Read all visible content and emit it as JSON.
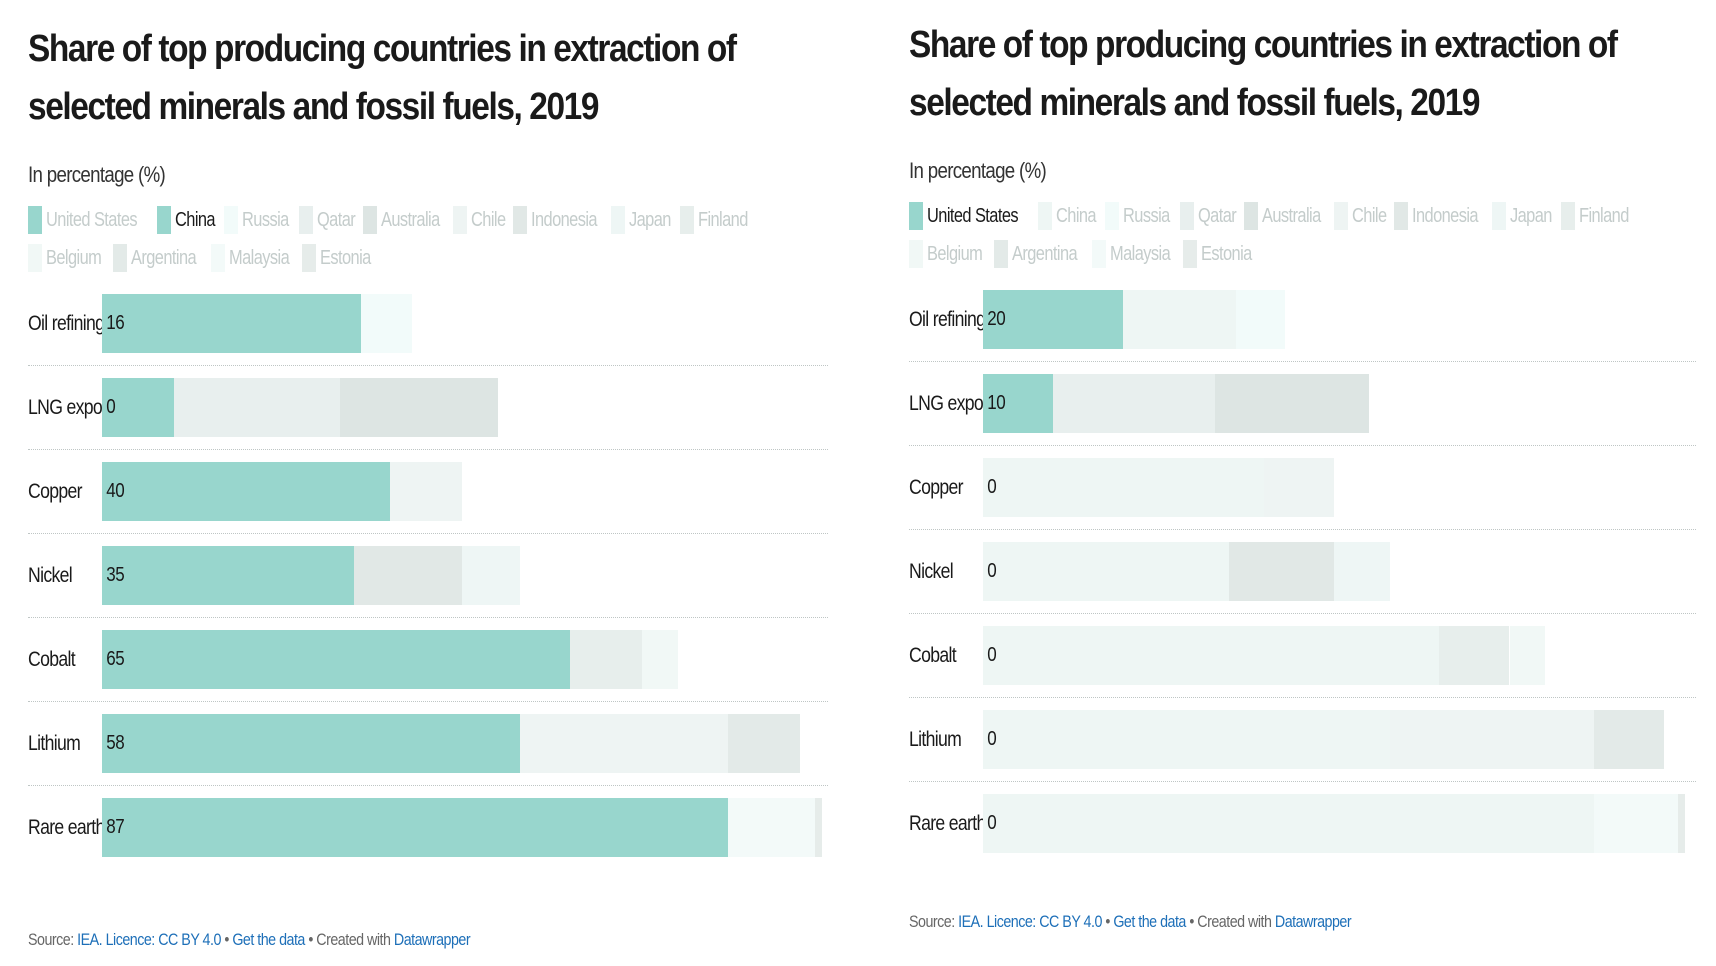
{
  "colors": {
    "highlight": "#98d6cd",
    "United States": "#98d6cd",
    "China": "#eef6f4",
    "Russia": "#f2fbfa",
    "Qatar": "#e8efee",
    "Australia": "#dde5e3",
    "Chile": "#eef4f3",
    "Indonesia": "#e1e8e6",
    "Japan": "#eef6f5",
    "Finland": "#e7eeec",
    "Belgium": "#f1f8f6",
    "Argentina": "#e3eae8",
    "Malaysia": "#f3faf9",
    "Estonia": "#e6ecea"
  },
  "legend_countries": [
    "United States",
    "China",
    "Russia",
    "Qatar",
    "Australia",
    "Chile",
    "Indonesia",
    "Japan",
    "Finland",
    "Belgium",
    "Argentina",
    "Malaysia",
    "Estonia"
  ],
  "footer": {
    "source_prefix": "Source:",
    "source_link": "IEA.",
    "licence_link": "Licence: CC BY 4.0",
    "sep1": " • ",
    "data_link": "Get the data",
    "sep2": " • Created with ",
    "tool_link": "Datawrapper"
  },
  "chart_data": [
    {
      "type": "bar",
      "stacked": true,
      "orientation": "horizontal",
      "title": "Share of top producing countries in extraction of selected minerals and fossil fuels, 2019",
      "subtitle": "In percentage (%)",
      "highlighted_series": "China",
      "xlim": [
        0,
        100
      ],
      "categories": [
        "Oil refining",
        "LNG export",
        "Copper",
        "Nickel",
        "Cobalt",
        "Lithium",
        "Rare earths"
      ],
      "series": [
        {
          "name": "United States",
          "values": [
            20,
            10,
            0,
            0,
            0,
            0,
            0
          ]
        },
        {
          "name": "China",
          "values": [
            16,
            0,
            40,
            35,
            65,
            58,
            87
          ]
        },
        {
          "name": "Russia",
          "values": [
            7,
            0,
            0,
            0,
            0,
            0,
            0
          ]
        },
        {
          "name": "Qatar",
          "values": [
            0,
            23,
            0,
            0,
            0,
            0,
            0
          ]
        },
        {
          "name": "Australia",
          "values": [
            0,
            22,
            0,
            0,
            0,
            0,
            0
          ]
        },
        {
          "name": "Chile",
          "values": [
            0,
            0,
            10,
            0,
            0,
            29,
            0
          ]
        },
        {
          "name": "Indonesia",
          "values": [
            0,
            0,
            0,
            15,
            0,
            0,
            0
          ]
        },
        {
          "name": "Japan",
          "values": [
            0,
            0,
            0,
            8,
            0,
            0,
            0
          ]
        },
        {
          "name": "Finland",
          "values": [
            0,
            0,
            0,
            0,
            10,
            0,
            0
          ]
        },
        {
          "name": "Belgium",
          "values": [
            0,
            0,
            0,
            0,
            5,
            0,
            0
          ]
        },
        {
          "name": "Argentina",
          "values": [
            0,
            0,
            0,
            0,
            0,
            10,
            0
          ]
        },
        {
          "name": "Malaysia",
          "values": [
            0,
            0,
            0,
            0,
            0,
            0,
            12
          ]
        },
        {
          "name": "Estonia",
          "values": [
            0,
            0,
            0,
            0,
            0,
            0,
            1
          ]
        }
      ],
      "value_labels": [
        "16",
        "0",
        "40",
        "35",
        "65",
        "58",
        "87"
      ]
    },
    {
      "type": "bar",
      "stacked": true,
      "orientation": "horizontal",
      "title": "Share of top producing countries in extraction of selected minerals and fossil fuels, 2019",
      "subtitle": "In percentage (%)",
      "highlighted_series": "United States",
      "xlim": [
        0,
        100
      ],
      "categories": [
        "Oil refining",
        "LNG export",
        "Copper",
        "Nickel",
        "Cobalt",
        "Lithium",
        "Rare earths"
      ],
      "series": [
        {
          "name": "United States",
          "values": [
            20,
            10,
            0,
            0,
            0,
            0,
            0
          ]
        },
        {
          "name": "China",
          "values": [
            16,
            0,
            40,
            35,
            65,
            58,
            87
          ]
        },
        {
          "name": "Russia",
          "values": [
            7,
            0,
            0,
            0,
            0,
            0,
            0
          ]
        },
        {
          "name": "Qatar",
          "values": [
            0,
            23,
            0,
            0,
            0,
            0,
            0
          ]
        },
        {
          "name": "Australia",
          "values": [
            0,
            22,
            0,
            0,
            0,
            0,
            0
          ]
        },
        {
          "name": "Chile",
          "values": [
            0,
            0,
            10,
            0,
            0,
            29,
            0
          ]
        },
        {
          "name": "Indonesia",
          "values": [
            0,
            0,
            0,
            15,
            0,
            0,
            0
          ]
        },
        {
          "name": "Japan",
          "values": [
            0,
            0,
            0,
            8,
            0,
            0,
            0
          ]
        },
        {
          "name": "Finland",
          "values": [
            0,
            0,
            0,
            0,
            10,
            0,
            0
          ]
        },
        {
          "name": "Belgium",
          "values": [
            0,
            0,
            0,
            0,
            5,
            0,
            0
          ]
        },
        {
          "name": "Argentina",
          "values": [
            0,
            0,
            0,
            0,
            0,
            10,
            0
          ]
        },
        {
          "name": "Malaysia",
          "values": [
            0,
            0,
            0,
            0,
            0,
            0,
            12
          ]
        },
        {
          "name": "Estonia",
          "values": [
            0,
            0,
            0,
            0,
            0,
            0,
            1
          ]
        }
      ],
      "value_labels": [
        "20",
        "10",
        "0",
        "0",
        "0",
        "0",
        "0"
      ]
    }
  ]
}
